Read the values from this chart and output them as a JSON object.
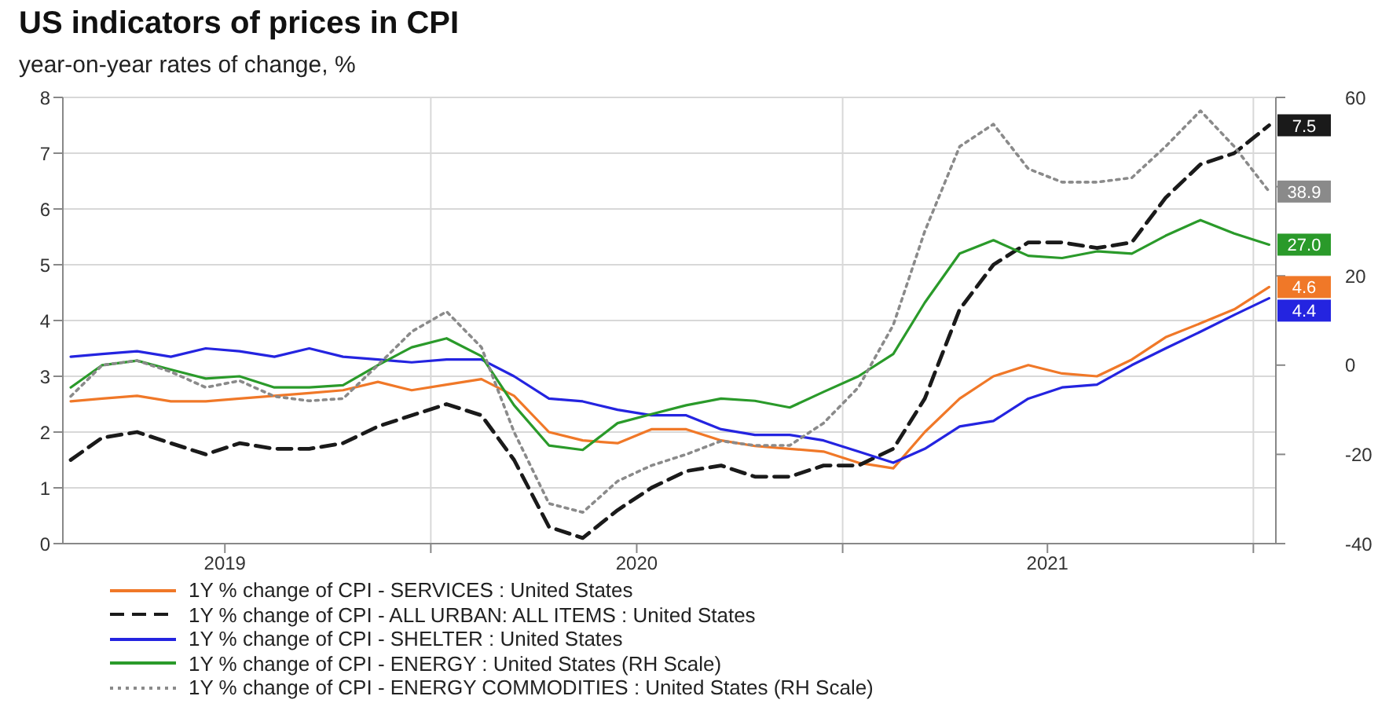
{
  "chart_data": {
    "type": "line",
    "title": "US indicators of prices in CPI",
    "subtitle": "year-on-year rates of change, %",
    "x": [
      "2019-02-15",
      "2019-03-15",
      "2019-04-15",
      "2019-05-15",
      "2019-06-15",
      "2019-07-15",
      "2019-08-15",
      "2019-09-15",
      "2019-10-15",
      "2019-11-15",
      "2019-12-15",
      "2020-01-15",
      "2020-02-15",
      "2020-03-15",
      "2020-04-15",
      "2020-05-15",
      "2020-06-15",
      "2020-07-15",
      "2020-08-15",
      "2020-09-15",
      "2020-10-15",
      "2020-11-15",
      "2020-12-15",
      "2021-01-15",
      "2021-02-15",
      "2021-03-15",
      "2021-04-15",
      "2021-05-15",
      "2021-06-15",
      "2021-07-15",
      "2021-08-15",
      "2021-09-15",
      "2021-10-15",
      "2021-11-15",
      "2021-12-15",
      "2022-01-15"
    ],
    "xlim": [
      "2019-02-08",
      "2022-01-21"
    ],
    "xticks": [
      {
        "value": "2019-07-02",
        "label": "2019"
      },
      {
        "value": "2020-01-01",
        "label": null
      },
      {
        "value": "2020-07-02",
        "label": "2020"
      },
      {
        "value": "2021-01-01",
        "label": null
      },
      {
        "value": "2021-07-02",
        "label": "2021"
      },
      {
        "value": "2022-01-01",
        "label": null
      }
    ],
    "ylim": [
      0,
      8
    ],
    "yticks": [
      0,
      1,
      2,
      3,
      4,
      5,
      6,
      7,
      8
    ],
    "y2lim": [
      -40,
      60
    ],
    "y2ticks": [
      -40,
      -20,
      0,
      20,
      {
        "value": 40,
        "label": null
      },
      60
    ],
    "grid": true,
    "legend": "bottom",
    "series": [
      {
        "name": "1Y % change of CPI - SERVICES : United States",
        "color": "#f07828",
        "line_style": "solid",
        "values": [
          2.55,
          2.6,
          2.65,
          2.55,
          2.55,
          2.6,
          2.65,
          2.7,
          2.75,
          2.9,
          2.75,
          2.85,
          2.95,
          2.65,
          2.0,
          1.85,
          1.8,
          2.05,
          2.05,
          1.85,
          1.75,
          1.7,
          1.65,
          1.45,
          1.35,
          2.0,
          2.6,
          3.0,
          3.2,
          3.05,
          3.0,
          3.3,
          3.7,
          3.95,
          4.2,
          4.6
        ],
        "value_labels": [
          null,
          null,
          null,
          null,
          null,
          null,
          null,
          null,
          null,
          null,
          null,
          null,
          null,
          null,
          null,
          null,
          null,
          null,
          null,
          null,
          null,
          null,
          null,
          null,
          null,
          null,
          null,
          null,
          null,
          null,
          null,
          null,
          null,
          null,
          null,
          "4.6"
        ]
      },
      {
        "name": "1Y % change of CPI - ALL URBAN: ALL ITEMS : United States",
        "color": "#1a1a1a",
        "line_style": "dashed",
        "values": [
          1.5,
          1.9,
          2.0,
          1.8,
          1.6,
          1.8,
          1.7,
          1.7,
          1.8,
          2.1,
          2.3,
          2.5,
          2.3,
          1.5,
          0.3,
          0.1,
          0.6,
          1.0,
          1.3,
          1.4,
          1.2,
          1.2,
          1.4,
          1.4,
          1.7,
          2.6,
          4.2,
          5.0,
          5.4,
          5.4,
          5.3,
          5.4,
          6.2,
          6.8,
          7.0,
          7.5
        ],
        "value_labels": [
          null,
          null,
          null,
          null,
          null,
          null,
          null,
          null,
          null,
          null,
          null,
          null,
          null,
          null,
          null,
          null,
          null,
          null,
          null,
          null,
          null,
          null,
          null,
          null,
          null,
          null,
          null,
          null,
          null,
          null,
          null,
          null,
          null,
          null,
          null,
          "7.5"
        ]
      },
      {
        "name": "1Y % change of CPI - SHELTER : United States",
        "color": "#2424e0",
        "line_style": "solid",
        "values": [
          3.35,
          3.4,
          3.45,
          3.35,
          3.5,
          3.45,
          3.35,
          3.5,
          3.35,
          3.3,
          3.25,
          3.3,
          3.3,
          3.0,
          2.6,
          2.55,
          2.4,
          2.3,
          2.3,
          2.05,
          1.95,
          1.95,
          1.85,
          1.65,
          1.45,
          1.7,
          2.1,
          2.2,
          2.6,
          2.8,
          2.85,
          3.2,
          3.5,
          3.8,
          4.1,
          4.4
        ],
        "value_labels": [
          null,
          null,
          null,
          null,
          null,
          null,
          null,
          null,
          null,
          null,
          null,
          null,
          null,
          null,
          null,
          null,
          null,
          null,
          null,
          null,
          null,
          null,
          null,
          null,
          null,
          null,
          null,
          null,
          null,
          null,
          null,
          null,
          null,
          null,
          null,
          "4.4"
        ]
      },
      {
        "name": "1Y % change of CPI - ENERGY : United States (RH Scale)",
        "color": "#2a9a2a",
        "line_style": "solid",
        "axis": "y2",
        "values": [
          -5,
          0,
          1,
          -1,
          -3,
          -2.5,
          -5,
          -5,
          -4.5,
          0,
          4,
          6,
          2,
          -9,
          -18,
          -19,
          -13,
          -11,
          -9,
          -7.5,
          -8,
          -9.5,
          -6,
          -2.5,
          2.5,
          14,
          25,
          28,
          24.5,
          24,
          25.5,
          25,
          29,
          32.5,
          29.5,
          27.0
        ],
        "value_labels": [
          null,
          null,
          null,
          null,
          null,
          null,
          null,
          null,
          null,
          null,
          null,
          null,
          null,
          null,
          null,
          null,
          null,
          null,
          null,
          null,
          null,
          null,
          null,
          null,
          null,
          null,
          null,
          null,
          null,
          null,
          null,
          null,
          null,
          null,
          null,
          "27.0"
        ]
      },
      {
        "name": "1Y % change of CPI - ENERGY COMMODITIES : United States (RH Scale)",
        "color": "#8a8a8a",
        "line_style": "dotted",
        "axis": "y2",
        "values": [
          -7,
          0,
          1,
          -1.5,
          -5,
          -3.5,
          -7,
          -8,
          -7.5,
          0,
          7.5,
          12,
          4,
          -15,
          -31,
          -33,
          -26,
          -22.5,
          -20,
          -17,
          -18,
          -18,
          -13,
          -5,
          9,
          30,
          49,
          54,
          44,
          41,
          41,
          42,
          49,
          57,
          49,
          38.9
        ],
        "value_labels": [
          null,
          null,
          null,
          null,
          null,
          null,
          null,
          null,
          null,
          null,
          null,
          null,
          null,
          null,
          null,
          null,
          null,
          null,
          null,
          null,
          null,
          null,
          null,
          null,
          null,
          null,
          null,
          null,
          null,
          null,
          null,
          null,
          null,
          null,
          null,
          "38.9"
        ]
      }
    ]
  }
}
